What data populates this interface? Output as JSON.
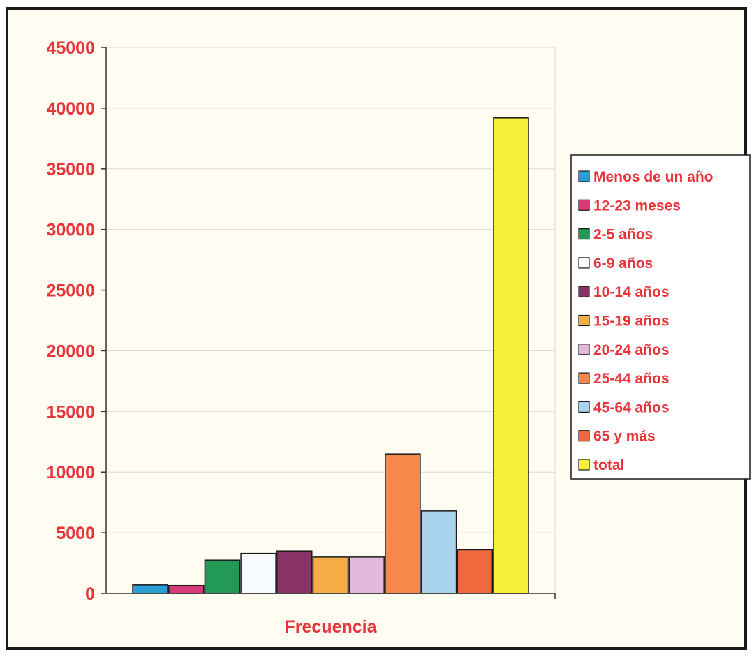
{
  "chart_data": {
    "type": "bar",
    "title": "",
    "xlabel": "Frecuencia",
    "ylabel": "",
    "ylim": [
      0,
      45000
    ],
    "yticks": [
      0,
      5000,
      10000,
      15000,
      20000,
      25000,
      30000,
      35000,
      40000,
      45000
    ],
    "grid": true,
    "legend_position": "right",
    "categories": [
      "Frecuencia"
    ],
    "series": [
      {
        "name": "Menos de un año",
        "values": [
          700
        ],
        "color": "#2a9fd6"
      },
      {
        "name": "12-23 meses",
        "values": [
          650
        ],
        "color": "#d93a7a"
      },
      {
        "name": "2-5 años",
        "values": [
          2750
        ],
        "color": "#229a55"
      },
      {
        "name": "6-9 años",
        "values": [
          3300
        ],
        "color": "#f8fbfd"
      },
      {
        "name": "10-14 años",
        "values": [
          3500
        ],
        "color": "#8a3366"
      },
      {
        "name": "15-19 años",
        "values": [
          3000
        ],
        "color": "#f4ae45"
      },
      {
        "name": "20-24 años",
        "values": [
          3000
        ],
        "color": "#e2b9dc"
      },
      {
        "name": "25-44 años",
        "values": [
          11500
        ],
        "color": "#f5884a"
      },
      {
        "name": "45-64 años",
        "values": [
          6800
        ],
        "color": "#a9d2ef"
      },
      {
        "name": "65 y más",
        "values": [
          3600
        ],
        "color": "#f2683e"
      },
      {
        "name": "total",
        "values": [
          39200
        ],
        "color": "#f7ef3a"
      }
    ]
  }
}
